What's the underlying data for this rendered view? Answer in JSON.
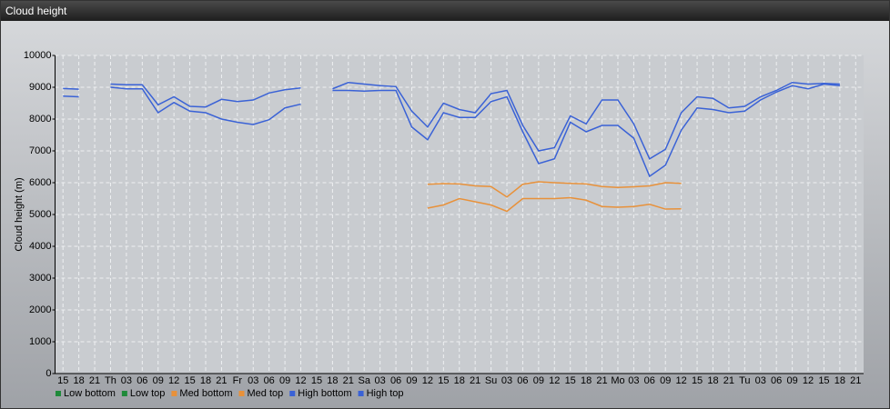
{
  "window_title": "Cloud height",
  "chart_data": {
    "type": "line",
    "y_label": "Cloud height (m)",
    "categories": [
      "15",
      "18",
      "21",
      "Th",
      "03",
      "06",
      "09",
      "12",
      "15",
      "18",
      "21",
      "Fr",
      "03",
      "06",
      "09",
      "12",
      "15",
      "18",
      "21",
      "Sa",
      "03",
      "06",
      "09",
      "12",
      "15",
      "18",
      "21",
      "Su",
      "03",
      "06",
      "09",
      "12",
      "15",
      "18",
      "21",
      "Mo",
      "03",
      "06",
      "09",
      "12",
      "15",
      "18",
      "21",
      "Tu",
      "03",
      "06",
      "09",
      "12",
      "15",
      "18",
      "21"
    ],
    "ylim": [
      0,
      10000
    ],
    "yticks": [
      0,
      1000,
      2000,
      3000,
      4000,
      5000,
      6000,
      7000,
      8000,
      9000,
      10000
    ],
    "grid": true,
    "legend": "bottom-left",
    "series": [
      {
        "name": "Low bottom",
        "color": "#1f8a3a",
        "values": [
          null,
          null,
          null,
          null,
          null,
          null,
          null,
          null,
          null,
          null,
          null,
          null,
          null,
          null,
          null,
          null,
          null,
          null,
          null,
          null,
          null,
          null,
          null,
          null,
          null,
          null,
          null,
          null,
          null,
          null,
          null,
          null,
          null,
          null,
          null,
          null,
          null,
          null,
          null,
          null,
          null,
          null,
          null,
          null,
          null,
          null,
          null,
          null,
          null,
          null,
          null
        ]
      },
      {
        "name": "Low top",
        "color": "#1f8a3a",
        "values": [
          null,
          null,
          null,
          null,
          null,
          null,
          null,
          null,
          null,
          null,
          null,
          null,
          null,
          null,
          null,
          null,
          null,
          null,
          null,
          null,
          null,
          null,
          null,
          null,
          null,
          null,
          null,
          null,
          null,
          null,
          null,
          null,
          null,
          null,
          null,
          null,
          null,
          null,
          null,
          null,
          null,
          null,
          null,
          null,
          null,
          null,
          null,
          null,
          null,
          null,
          null
        ]
      },
      {
        "name": "Med bottom",
        "color": "#e8913a",
        "values": [
          null,
          null,
          null,
          null,
          null,
          null,
          null,
          null,
          null,
          null,
          null,
          null,
          null,
          null,
          null,
          null,
          null,
          null,
          null,
          null,
          null,
          null,
          null,
          5200,
          5300,
          5500,
          5400,
          5300,
          5100,
          5500,
          5500,
          5500,
          5530,
          5450,
          5250,
          5230,
          5250,
          5320,
          5170,
          5180,
          null,
          null,
          null,
          null,
          null,
          null,
          null,
          null,
          null,
          null,
          null
        ]
      },
      {
        "name": "Med top",
        "color": "#e8913a",
        "values": [
          null,
          null,
          null,
          null,
          null,
          null,
          null,
          null,
          null,
          null,
          null,
          null,
          null,
          null,
          null,
          null,
          null,
          null,
          null,
          null,
          null,
          null,
          null,
          5950,
          5970,
          5960,
          5900,
          5880,
          5550,
          5950,
          6030,
          6000,
          5980,
          5960,
          5880,
          5850,
          5870,
          5900,
          6000,
          5980,
          null,
          null,
          null,
          null,
          null,
          null,
          null,
          null,
          null,
          null,
          null
        ]
      },
      {
        "name": "High bottom",
        "color": "#3a62d6",
        "values": [
          8720,
          8700,
          null,
          9000,
          8950,
          8950,
          8200,
          8520,
          8250,
          8200,
          8000,
          7900,
          7830,
          7980,
          8350,
          8470,
          null,
          8900,
          8900,
          8880,
          8900,
          8900,
          7750,
          7350,
          8200,
          8050,
          8050,
          8550,
          8700,
          7600,
          6600,
          6750,
          7900,
          7600,
          7800,
          7800,
          7400,
          6200,
          6550,
          7650,
          8350,
          8300,
          8200,
          8250,
          8600,
          8850,
          9050,
          8950,
          9100,
          9050,
          null
        ]
      },
      {
        "name": "High top",
        "color": "#3a62d6",
        "values": [
          8960,
          8940,
          null,
          9100,
          9080,
          9080,
          8450,
          8700,
          8400,
          8380,
          8620,
          8550,
          8600,
          8820,
          8920,
          8980,
          null,
          8950,
          9150,
          9100,
          9050,
          9020,
          8250,
          7750,
          8500,
          8300,
          8200,
          8800,
          8900,
          7800,
          7000,
          7100,
          8100,
          7850,
          8600,
          8600,
          7850,
          6750,
          7050,
          8200,
          8700,
          8650,
          8350,
          8400,
          8700,
          8900,
          9150,
          9100,
          9120,
          9100,
          null
        ]
      }
    ]
  }
}
